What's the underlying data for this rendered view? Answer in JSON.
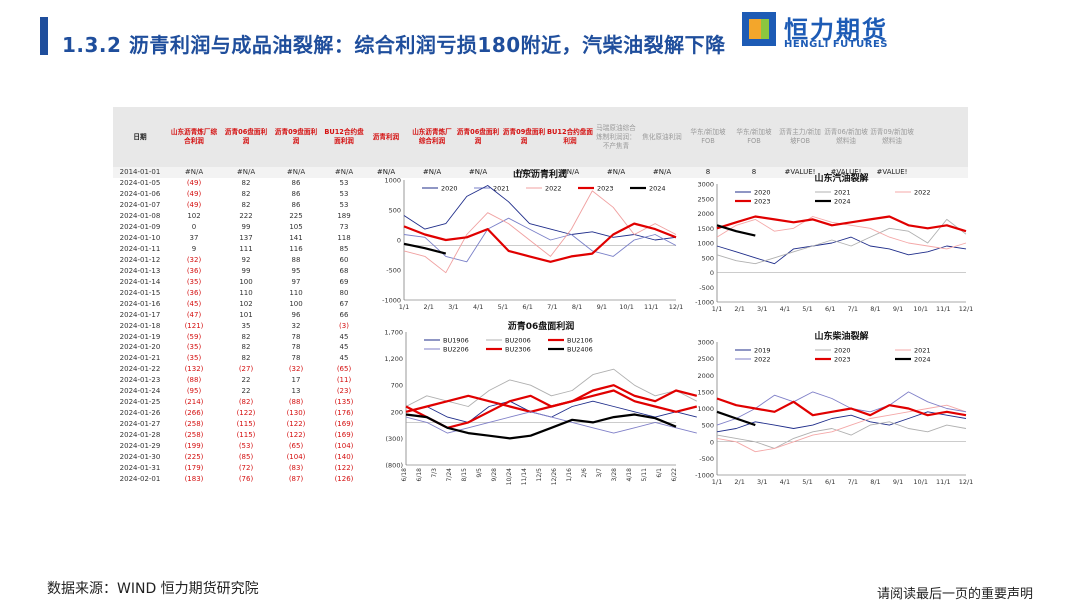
{
  "header": {
    "title": "1.3.2 沥青利润与成品油裂解：综合利润亏损180附近，汽柴油裂解下降",
    "logo_cn": "恒力期货",
    "logo_en": "HENGLI FUTURES"
  },
  "table": {
    "headers": [
      "日期",
      "山东沥青炼厂综合利润",
      "沥青06盘面利润",
      "沥青09盘面利润",
      "BU12合约盘面利润",
      "沥青利润",
      "山东沥青炼厂综合利润",
      "沥青06盘面利润",
      "沥青09盘面利润",
      "BU12合约盘面利润",
      "马瑞原油综合炼制利润润：不产焦青",
      "焦化原油利润",
      "华东/新加坡FOB",
      "华东/新加坡FOB",
      "沥青主力/新加坡FOB",
      "沥青06/新加坡燃料油",
      "沥青09/新加坡燃料油"
    ],
    "na_row": [
      "2014-01-01",
      "#N/A",
      "#N/A",
      "#N/A",
      "#N/A",
      "#N/A",
      "#N/A",
      "#N/A",
      "#N/A",
      "#N/A",
      "#N/A",
      "#N/A",
      "8",
      "8",
      "#VALUE!",
      "#VALUE!",
      "#VALUE!"
    ],
    "rows": [
      [
        "2024-01-05",
        "(49)",
        "82",
        "86",
        "53"
      ],
      [
        "2024-01-06",
        "(49)",
        "82",
        "86",
        "53"
      ],
      [
        "2024-01-07",
        "(49)",
        "82",
        "86",
        "53"
      ],
      [
        "2024-01-08",
        "102",
        "222",
        "225",
        "189"
      ],
      [
        "2024-01-09",
        "0",
        "99",
        "105",
        "73"
      ],
      [
        "2024-01-10",
        "37",
        "137",
        "141",
        "118"
      ],
      [
        "2024-01-11",
        "9",
        "111",
        "116",
        "85"
      ],
      [
        "2024-01-12",
        "(32)",
        "92",
        "88",
        "60"
      ],
      [
        "2024-01-13",
        "(36)",
        "99",
        "95",
        "68"
      ],
      [
        "2024-01-14",
        "(35)",
        "100",
        "97",
        "69"
      ],
      [
        "2024-01-15",
        "(36)",
        "110",
        "110",
        "80"
      ],
      [
        "2024-01-16",
        "(45)",
        "102",
        "100",
        "67"
      ],
      [
        "2024-01-17",
        "(47)",
        "101",
        "96",
        "66"
      ],
      [
        "2024-01-18",
        "(121)",
        "35",
        "32",
        "(3)"
      ],
      [
        "2024-01-19",
        "(59)",
        "82",
        "78",
        "45"
      ],
      [
        "2024-01-20",
        "(35)",
        "82",
        "78",
        "45"
      ],
      [
        "2024-01-21",
        "(35)",
        "82",
        "78",
        "45"
      ],
      [
        "2024-01-22",
        "(132)",
        "(27)",
        "(32)",
        "(65)"
      ],
      [
        "2024-01-23",
        "(88)",
        "22",
        "17",
        "(11)"
      ],
      [
        "2024-01-24",
        "(95)",
        "22",
        "13",
        "(23)"
      ],
      [
        "2024-01-25",
        "(214)",
        "(82)",
        "(88)",
        "(135)"
      ],
      [
        "2024-01-26",
        "(266)",
        "(122)",
        "(130)",
        "(176)"
      ],
      [
        "2024-01-27",
        "(258)",
        "(115)",
        "(122)",
        "(169)"
      ],
      [
        "2024-01-28",
        "(258)",
        "(115)",
        "(122)",
        "(169)"
      ],
      [
        "2024-01-29",
        "(199)",
        "(53)",
        "(65)",
        "(104)"
      ],
      [
        "2024-01-30",
        "(225)",
        "(85)",
        "(104)",
        "(140)"
      ],
      [
        "2024-01-31",
        "(179)",
        "(72)",
        "(83)",
        "(122)"
      ],
      [
        "2024-02-01",
        "(183)",
        "(76)",
        "(87)",
        "(126)"
      ]
    ]
  },
  "chart_data": [
    {
      "type": "line",
      "title": "山东沥青利润",
      "x_ticks": [
        "1/1",
        "2/1",
        "3/1",
        "4/1",
        "5/1",
        "6/1",
        "7/1",
        "8/1",
        "9/1",
        "10/1",
        "11/1",
        "12/1"
      ],
      "y_ticks": [
        "1000",
        "500",
        "0",
        "-500",
        "-1000"
      ],
      "ylim": [
        -1000,
        1200
      ],
      "series": [
        {
          "name": "2020",
          "color": "#1f2d8a",
          "values": [
            550,
            300,
            400,
            900,
            1100,
            800,
            400,
            300,
            200,
            250,
            150,
            200,
            100,
            150
          ]
        },
        {
          "name": "2021",
          "color": "#7a80c8",
          "values": [
            200,
            150,
            -200,
            -300,
            300,
            500,
            300,
            100,
            200,
            -100,
            -200,
            100,
            200,
            0
          ]
        },
        {
          "name": "2022",
          "color": "#f0a0a0",
          "values": [
            -100,
            -200,
            -500,
            200,
            600,
            400,
            100,
            -200,
            300,
            1000,
            700,
            200,
            400,
            200
          ]
        },
        {
          "name": "2023",
          "color": "#e00000",
          "values": [
            350,
            200,
            100,
            150,
            300,
            -100,
            -200,
            -300,
            -200,
            -150,
            200,
            400,
            300,
            150
          ]
        },
        {
          "name": "2024",
          "color": "#000000",
          "values": [
            30,
            -50,
            -150
          ]
        }
      ]
    },
    {
      "type": "line",
      "title": "山东汽油裂解",
      "x_ticks": [
        "1/1",
        "2/1",
        "3/1",
        "4/1",
        "5/1",
        "6/1",
        "7/1",
        "8/1",
        "9/1",
        "10/1",
        "11/1",
        "12/1"
      ],
      "y_ticks": [
        "3000",
        "2500",
        "2000",
        "1500",
        "1000",
        "500",
        "0",
        "-500",
        "-1000"
      ],
      "ylim": [
        -1000,
        3000
      ],
      "series": [
        {
          "name": "2020",
          "color": "#1f2d8a",
          "values": [
            900,
            700,
            500,
            300,
            800,
            900,
            1000,
            1200,
            900,
            800,
            600,
            700,
            900,
            800
          ]
        },
        {
          "name": "2021",
          "color": "#b0b0b0",
          "values": [
            600,
            400,
            300,
            500,
            700,
            900,
            1100,
            900,
            1200,
            1500,
            1400,
            1000,
            1800,
            1300
          ]
        },
        {
          "name": "2022",
          "color": "#f4a8a8",
          "values": [
            1200,
            1600,
            1800,
            1400,
            1500,
            1900,
            1700,
            1600,
            1500,
            1200,
            1000,
            900,
            800,
            1000
          ]
        },
        {
          "name": "2023",
          "color": "#e00000",
          "values": [
            1500,
            1700,
            1900,
            1800,
            1700,
            1800,
            1600,
            1700,
            1800,
            1900,
            1600,
            1500,
            1600,
            1400
          ]
        },
        {
          "name": "2024",
          "color": "#000000",
          "values": [
            1600,
            1400,
            1250
          ]
        }
      ]
    },
    {
      "type": "line",
      "title": "沥青06盘面利润",
      "x_ticks": [
        "6/18",
        "6/18",
        "7/3",
        "7/24",
        "8/15",
        "9/5",
        "9/28",
        "10/24",
        "11/14",
        "12/5",
        "12/26",
        "1/16",
        "2/6",
        "3/7",
        "3/28",
        "4/18",
        "5/11",
        "6/1",
        "6/22"
      ],
      "y_ticks": [
        "1,700",
        "1,200",
        "700",
        "200",
        "(300)",
        "(800)"
      ],
      "ylim": [
        -800,
        1700
      ],
      "series": [
        {
          "name": "BU1906",
          "color": "#1f2d8a",
          "values": [
            200,
            300,
            100,
            0,
            300,
            400,
            200,
            100,
            300,
            400,
            300,
            200,
            100,
            200,
            100
          ]
        },
        {
          "name": "BU2006",
          "color": "#b0b0b0",
          "values": [
            300,
            500,
            400,
            300,
            600,
            800,
            700,
            500,
            600,
            900,
            1000,
            700,
            500,
            600,
            400
          ]
        },
        {
          "name": "BU2106",
          "color": "#e00000",
          "values": [
            200,
            300,
            400,
            500,
            400,
            300,
            200,
            300,
            400,
            500,
            600,
            400,
            300,
            200,
            300
          ]
        },
        {
          "name": "BU2206",
          "color": "#8080c8",
          "values": [
            100,
            0,
            -200,
            -100,
            0,
            100,
            200,
            100,
            0,
            -100,
            -200,
            -100,
            0,
            -100,
            -200
          ]
        },
        {
          "name": "BU2306",
          "color": "#e00000",
          "values": [
            300,
            100,
            -100,
            0,
            200,
            400,
            500,
            300,
            400,
            600,
            700,
            500,
            400,
            600,
            500
          ]
        },
        {
          "name": "BU2406",
          "color": "#000000",
          "values": [
            150,
            100,
            -100,
            -200,
            -250,
            -300,
            -250,
            -100,
            50,
            0,
            100,
            150,
            80,
            -80
          ]
        }
      ]
    },
    {
      "type": "line",
      "title": "山东柴油裂解",
      "x_ticks": [
        "1/1",
        "2/1",
        "3/1",
        "4/1",
        "5/1",
        "6/1",
        "7/1",
        "8/1",
        "9/1",
        "10/1",
        "11/1",
        "12/1"
      ],
      "y_ticks": [
        "3000",
        "2500",
        "2000",
        "1500",
        "1000",
        "500",
        "0",
        "-500",
        "-1000"
      ],
      "ylim": [
        -1000,
        3000
      ],
      "series": [
        {
          "name": "2019",
          "color": "#1f2d8a",
          "values": [
            300,
            400,
            600,
            500,
            400,
            500,
            700,
            800,
            600,
            500,
            700,
            900,
            800,
            700
          ]
        },
        {
          "name": "2020",
          "color": "#b0b0b0",
          "values": [
            200,
            100,
            0,
            -200,
            100,
            300,
            400,
            200,
            500,
            600,
            400,
            300,
            500,
            400
          ]
        },
        {
          "name": "2021",
          "color": "#f4a8a8",
          "values": [
            100,
            0,
            -300,
            -200,
            0,
            200,
            300,
            500,
            700,
            800,
            900,
            1000,
            1100,
            900
          ]
        },
        {
          "name": "2022",
          "color": "#8080c8",
          "values": [
            500,
            700,
            1000,
            1400,
            1200,
            1500,
            1300,
            1000,
            900,
            1100,
            1500,
            1200,
            1000,
            900
          ]
        },
        {
          "name": "2023",
          "color": "#e00000",
          "values": [
            1300,
            1100,
            1000,
            900,
            1200,
            800,
            900,
            1000,
            800,
            1100,
            1000,
            800,
            900,
            800
          ]
        },
        {
          "name": "2024",
          "color": "#000000",
          "values": [
            900,
            700,
            500
          ]
        }
      ]
    }
  ],
  "footer": {
    "source": "数据来源：WIND 恒力期货研究院",
    "disclaimer": "请阅读最后一页的重要声明"
  }
}
